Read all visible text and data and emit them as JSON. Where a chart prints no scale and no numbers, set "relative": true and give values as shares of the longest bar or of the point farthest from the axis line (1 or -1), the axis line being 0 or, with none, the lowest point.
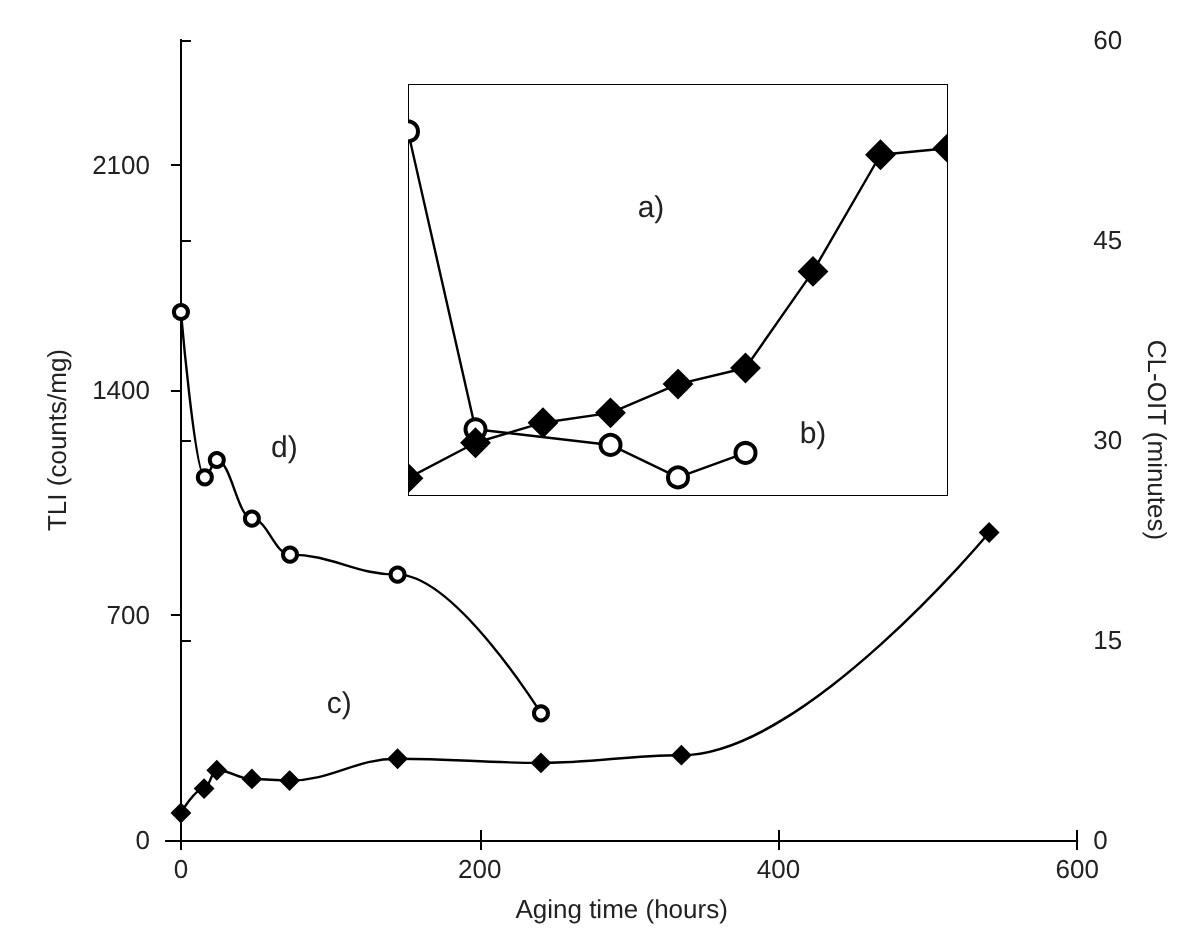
{
  "chart_data": [
    {
      "type": "line",
      "xlabel": "Aging time (hours)",
      "ylabel": "TLI (counts/mg)",
      "y2label": "CL-OIT (minutes)",
      "xlim": [
        -10,
        600
      ],
      "xticks": [
        0,
        200,
        400,
        600
      ],
      "ylim": [
        0,
        2490
      ],
      "yticks": [
        0,
        700,
        1400,
        2100
      ],
      "y2lim": [
        0,
        60
      ],
      "y2ticks": [
        0,
        15,
        30,
        45,
        60
      ],
      "series": [
        {
          "color": "#000000",
          "marker": "diamond",
          "x": [
            0,
            15.5,
            24,
            47.5,
            72.7,
            145,
            241,
            335,
            541
          ],
          "values": [
            84,
            160,
            217,
            190,
            185,
            253,
            240,
            264,
            957
          ]
        },
        {
          "color": "#000000",
          "marker": "circle",
          "axis": "y2",
          "x": [
            0,
            16,
            24,
            47.5,
            73,
            145,
            241
          ],
          "values": [
            39.6,
            27.2,
            28.5,
            24.1,
            21.4,
            19.9,
            9.5
          ]
        }
      ],
      "annotations": [
        "c)",
        "d)"
      ],
      "grid": false
    },
    {
      "type": "line",
      "relative": true,
      "tick_labels": false,
      "categories": [
        null,
        null,
        null,
        null,
        null,
        null,
        null,
        null,
        null
      ],
      "series": [
        {
          "color": "#000000",
          "marker": "diamond",
          "values": [
            0.049,
            0.146,
            0.201,
            0.228,
            0.307,
            0.351,
            0.616,
            0.936,
            0.954
          ]
        },
        {
          "color": "#000000",
          "marker": "circle",
          "values": [
            1.0,
            0.183,
            null,
            0.14,
            0.051,
            0.118,
            null,
            null,
            null
          ]
        }
      ],
      "annotations": [
        "a)",
        "b)"
      ],
      "grid": false
    }
  ]
}
